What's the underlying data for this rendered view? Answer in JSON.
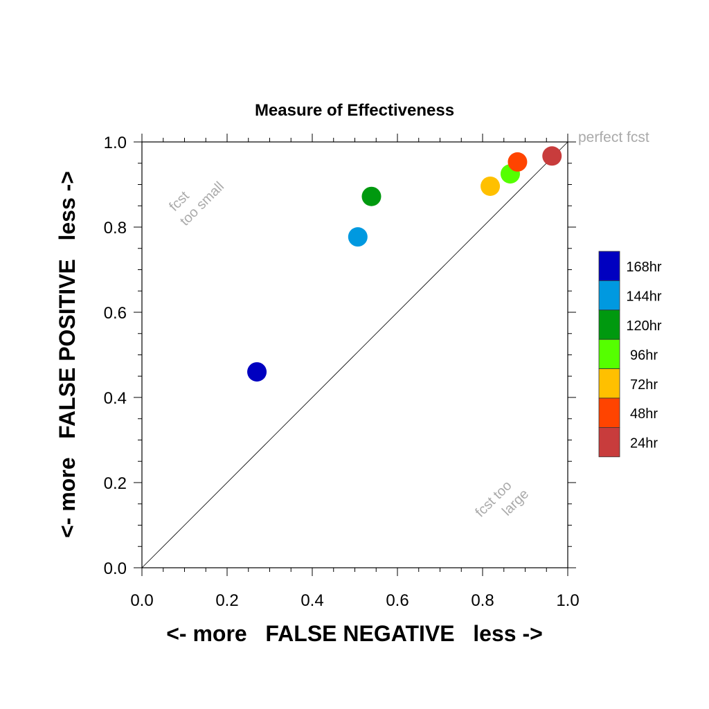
{
  "chart_data": {
    "type": "scatter",
    "title": "Measure of Effectiveness",
    "xlabel": "<- more   FALSE NEGATIVE   less ->",
    "ylabel": "<- more   FALSE POSITIVE   less ->",
    "xlim": [
      0.0,
      1.0
    ],
    "ylim": [
      0.0,
      1.0
    ],
    "x_ticks": [
      0.0,
      0.2,
      0.4,
      0.6,
      0.8,
      1.0
    ],
    "y_ticks": [
      0.0,
      0.2,
      0.4,
      0.6,
      0.8,
      1.0
    ],
    "tick_labels": [
      "0.0",
      "0.2",
      "0.4",
      "0.6",
      "0.8",
      "1.0"
    ],
    "grid": false,
    "legend_position": "right",
    "reference_line": {
      "from": [
        0,
        0
      ],
      "to": [
        1,
        1
      ],
      "label": "perfect fcst"
    },
    "annotations": {
      "upper_left": [
        "fcst",
        "too small"
      ],
      "lower_right": [
        "fcst too",
        "large"
      ]
    },
    "series": [
      {
        "name": "168hr",
        "color": "#0000c0",
        "x": 0.27,
        "y": 0.46
      },
      {
        "name": "144hr",
        "color": "#0099e0",
        "x": 0.507,
        "y": 0.777
      },
      {
        "name": "120hr",
        "color": "#00990f",
        "x": 0.539,
        "y": 0.872
      },
      {
        "name": "96hr",
        "color": "#55ff00",
        "x": 0.865,
        "y": 0.925
      },
      {
        "name": "72hr",
        "color": "#ffc000",
        "x": 0.818,
        "y": 0.896
      },
      {
        "name": "48hr",
        "color": "#ff4400",
        "x": 0.882,
        "y": 0.953
      },
      {
        "name": "24hr",
        "color": "#c83c3c",
        "x": 0.963,
        "y": 0.967
      }
    ]
  }
}
